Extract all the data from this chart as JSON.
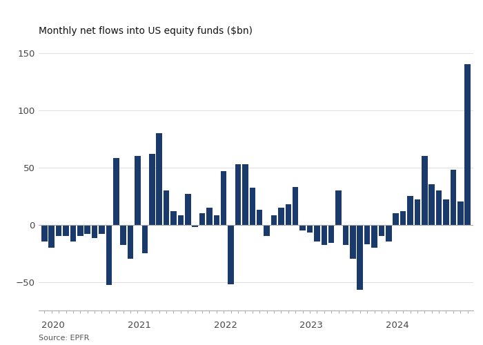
{
  "title": "Monthly net flows into US equity funds ($bn)",
  "source": "Source: EPFR",
  "bar_color": "#1a3a6b",
  "background_color": "#FFFFFF",
  "ylim": [
    -75,
    160
  ],
  "yticks": [
    -50,
    0,
    50,
    100,
    150
  ],
  "values": [
    -15,
    -20,
    -10,
    -10,
    -15,
    -10,
    -8,
    -12,
    -8,
    -53,
    58,
    -18,
    -30,
    60,
    -25,
    62,
    80,
    30,
    12,
    8,
    27,
    -2,
    10,
    15,
    8,
    47,
    -52,
    53,
    53,
    32,
    13,
    -10,
    8,
    15,
    18,
    33,
    -5,
    -7,
    -15,
    -18,
    -16,
    30,
    -18,
    -30,
    -57,
    -17,
    -20,
    -10,
    -15,
    10,
    12,
    25,
    22,
    60,
    35,
    30,
    22,
    48,
    20,
    140
  ],
  "year_labels": [
    "2020",
    "2021",
    "2022",
    "2023",
    "2024"
  ],
  "year_positions": [
    0,
    12,
    24,
    36,
    48
  ]
}
